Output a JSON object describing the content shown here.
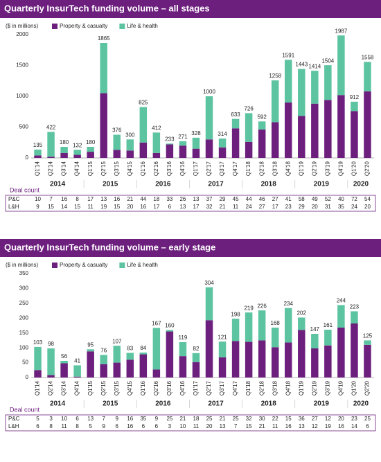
{
  "chart_data": [
    {
      "type": "bar",
      "stacked": true,
      "title": "Quarterly InsurTech funding volume – all stages",
      "unit_label": "($ in millions)",
      "categories": [
        "Q1'14",
        "Q2'14",
        "Q3'14",
        "Q4'14",
        "Q1'15",
        "Q2'15",
        "Q3'15",
        "Q4'15",
        "Q1'16",
        "Q2'16",
        "Q3'16",
        "Q4'16",
        "Q1'17",
        "Q2'17",
        "Q3'17",
        "Q4'17",
        "Q1'18",
        "Q2'18",
        "Q3'18",
        "Q4'18",
        "Q1'19",
        "Q2'19",
        "Q3'19",
        "Q4'19",
        "Q1'20",
        "Q2'20"
      ],
      "years": [
        "2014",
        "2015",
        "2016",
        "2017",
        "2018",
        "2019",
        "2020"
      ],
      "series": [
        {
          "name": "Property & casualty",
          "color": "#6d1f7e",
          "values": [
            40,
            20,
            80,
            50,
            100,
            1050,
            130,
            120,
            250,
            80,
            220,
            200,
            150,
            300,
            170,
            480,
            260,
            460,
            580,
            900,
            680,
            880,
            940,
            1020,
            760,
            1080
          ]
        },
        {
          "name": "Life & health",
          "color": "#5cc4a0",
          "values": [
            95,
            402,
            100,
            82,
            80,
            815,
            246,
            180,
            575,
            332,
            13,
            71,
            178,
            700,
            144,
            153,
            466,
            132,
            678,
            691,
            763,
            534,
            564,
            967,
            152,
            478
          ]
        }
      ],
      "totals": [
        135,
        422,
        180,
        132,
        180,
        1865,
        376,
        300,
        825,
        412,
        233,
        271,
        328,
        1000,
        314,
        633,
        726,
        592,
        1258,
        1591,
        1443,
        1414,
        1504,
        1987,
        912,
        1558
      ],
      "ylim": [
        0,
        2000
      ],
      "yticks": [
        0,
        500,
        1000,
        1500,
        2000
      ],
      "deal_count": {
        "label": "Deal count",
        "rows": [
          {
            "name": "P&C",
            "values": [
              10,
              7,
              16,
              8,
              17,
              13,
              16,
              21,
              44,
              18,
              33,
              26,
              13,
              37,
              29,
              45,
              44,
              46,
              27,
              41,
              58,
              49,
              52,
              40,
              72,
              54
            ]
          },
          {
            "name": "L&H",
            "values": [
              9,
              15,
              14,
              15,
              11,
              19,
              15,
              20,
              16,
              17,
              6,
              13,
              17,
              32,
              21,
              11,
              24,
              27,
              17,
              23,
              29,
              20,
              31,
              35,
              24,
              20
            ]
          }
        ]
      }
    },
    {
      "type": "bar",
      "stacked": true,
      "title": "Quarterly InsurTech funding volume – early stage",
      "unit_label": "($ in millions)",
      "categories": [
        "Q1'14",
        "Q2'14",
        "Q3'14",
        "Q4'14",
        "Q1'15",
        "Q2'15",
        "Q3'15",
        "Q4'15",
        "Q1'16",
        "Q2'16",
        "Q3'16",
        "Q4'16",
        "Q1'17",
        "Q2'17",
        "Q3'17",
        "Q4'17",
        "Q1'18",
        "Q2'18",
        "Q3'18",
        "Q4'18",
        "Q1'19",
        "Q2'19",
        "Q3'19",
        "Q4'19",
        "Q1'20",
        "Q2'20"
      ],
      "years": [
        "2014",
        "2015",
        "2016",
        "2017",
        "2018",
        "2019",
        "2020"
      ],
      "series": [
        {
          "name": "Property & casualty",
          "color": "#6d1f7e",
          "values": [
            25,
            8,
            48,
            3,
            88,
            45,
            50,
            60,
            78,
            27,
            155,
            72,
            52,
            193,
            68,
            123,
            120,
            125,
            102,
            118,
            160,
            98,
            108,
            168,
            182,
            110
          ]
        },
        {
          "name": "Life & health",
          "color": "#5cc4a0",
          "values": [
            78,
            90,
            8,
            38,
            7,
            31,
            57,
            23,
            6,
            140,
            5,
            47,
            30,
            111,
            53,
            75,
            99,
            101,
            66,
            116,
            42,
            49,
            53,
            76,
            41,
            15
          ]
        }
      ],
      "totals": [
        103,
        98,
        56,
        41,
        95,
        76,
        107,
        83,
        84,
        167,
        160,
        119,
        82,
        304,
        121,
        198,
        219,
        226,
        168,
        234,
        202,
        147,
        161,
        244,
        223,
        125
      ],
      "ylim": [
        0,
        350
      ],
      "yticks": [
        0,
        50,
        100,
        150,
        200,
        250,
        300,
        350
      ],
      "deal_count": {
        "label": "Deal count",
        "rows": [
          {
            "name": "P&C",
            "values": [
              5,
              3,
              10,
              6,
              13,
              7,
              9,
              16,
              35,
              9,
              25,
              21,
              18,
              25,
              21,
              25,
              32,
              30,
              22,
              15,
              36,
              27,
              12,
              20,
              23,
              25
            ]
          },
          {
            "name": "L&H",
            "values": [
              6,
              8,
              11,
              8,
              5,
              9,
              6,
              16,
              6,
              6,
              3,
              10,
              11,
              20,
              13,
              7,
              15,
              21,
              11,
              16,
              13,
              12,
              19,
              16,
              14,
              6
            ]
          }
        ]
      }
    }
  ]
}
